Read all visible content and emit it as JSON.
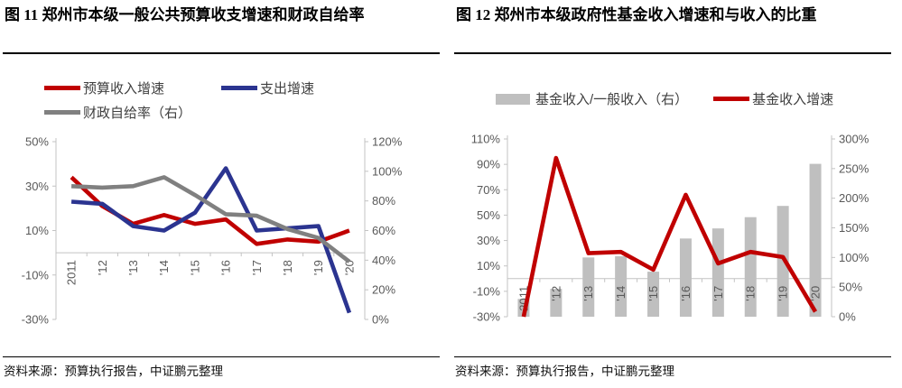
{
  "colors": {
    "red": "#c00000",
    "blue": "#2b3490",
    "gray_line": "#808080",
    "bar_gray": "#bfbfbf",
    "axis_line": "#c3c3c3",
    "axis_text": "#595959"
  },
  "panels": [
    {
      "title": "图 11 郑州市本级一般公共预算收支增速和财政自给率",
      "source": "资料来源：预算执行报告，中证鹏元整理"
    },
    {
      "title": "图 12 郑州市本级政府性基金收入增速和与收入的比重",
      "source": "资料来源：预算执行报告，中证鹏元整理"
    }
  ],
  "chart_data": [
    {
      "type": "line",
      "title": "郑州市本级一般公共预算收支增速和财政自给率",
      "categories": [
        "2011",
        "'12",
        "'13",
        "'14",
        "'15",
        "'16",
        "'17",
        "'18",
        "'19",
        "'20"
      ],
      "series": [
        {
          "name": "预算收入增速",
          "type": "line",
          "axis": "left",
          "color": "#c00000",
          "values": [
            34,
            21,
            13,
            17,
            13,
            15,
            4,
            6,
            5,
            10
          ]
        },
        {
          "name": "支出增速",
          "type": "line",
          "axis": "left",
          "color": "#2b3490",
          "values": [
            23,
            22,
            12,
            10,
            18,
            38,
            10,
            11,
            12,
            -27
          ]
        },
        {
          "name": "财政自给率（右）",
          "type": "line",
          "axis": "right",
          "color": "#808080",
          "values": [
            90,
            89,
            90,
            96,
            84,
            71,
            70,
            61,
            55,
            39
          ]
        }
      ],
      "left_axis": {
        "min": -30,
        "max": 50,
        "ticks": [
          "50%",
          "30%",
          "10%",
          "-10%",
          "-30%"
        ]
      },
      "right_axis": {
        "min": 0,
        "max": 120,
        "ticks": [
          "120%",
          "100%",
          "80%",
          "60%",
          "40%",
          "20%",
          "0%"
        ]
      },
      "grid": "zero-line-only",
      "legend_position": "top"
    },
    {
      "type": "bar+line",
      "title": "郑州市本级政府性基金收入增速和与收入的比重",
      "categories": [
        "2011",
        "'12",
        "'13",
        "'14",
        "'15",
        "'16",
        "'17",
        "'18",
        "'19",
        "'20"
      ],
      "series": [
        {
          "name": "基金收入/一般收入（右）",
          "type": "bar",
          "axis": "right",
          "color": "#bfbfbf",
          "values": [
            30,
            47,
            100,
            102,
            76,
            132,
            149,
            168,
            187,
            258
          ]
        },
        {
          "name": "基金收入增速",
          "type": "line",
          "axis": "left",
          "color": "#c00000",
          "values": [
            -30,
            95,
            20,
            21,
            7,
            66,
            12,
            21,
            17,
            -26
          ]
        }
      ],
      "left_axis": {
        "min": -30,
        "max": 110,
        "ticks": [
          "110%",
          "90%",
          "70%",
          "50%",
          "30%",
          "10%",
          "-10%",
          "-30%"
        ]
      },
      "right_axis": {
        "min": 0,
        "max": 300,
        "ticks": [
          "300%",
          "250%",
          "200%",
          "150%",
          "100%",
          "50%",
          "0%"
        ]
      },
      "grid": "zero-line-only",
      "legend_position": "top"
    }
  ]
}
